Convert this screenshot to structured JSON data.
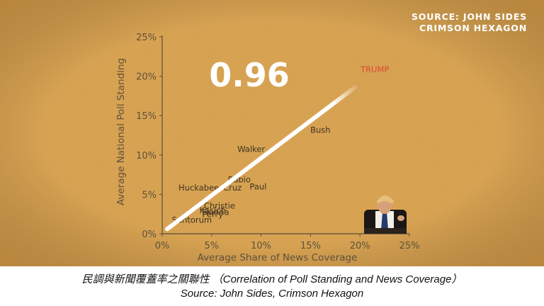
{
  "source_line1": "SOURCE: JOHN SIDES",
  "source_line2": "CRIMSON HEXAGON",
  "correlation_label": "0.96",
  "caption_line1": "民調與新聞覆蓋率之關聯性 （Correlation of Poll Standing and News Coverage）",
  "caption_line2": "Source: John Sides, Crimson Hexagon",
  "colors": {
    "background": "#d9a352",
    "axis": "#6e5a3c",
    "tick_text": "#5f513b",
    "candidate_label": "#3e3322",
    "highlight_label": "#d84a32",
    "trend_line": "#ffffff"
  },
  "chart_data": {
    "type": "scatter",
    "title": "",
    "xlabel": "Average Share of News Coverage",
    "ylabel": "Average National Poll Standing",
    "xlim": [
      0,
      25
    ],
    "ylim": [
      0,
      25
    ],
    "xticks": [
      "0%",
      "5%",
      "10%",
      "15%",
      "20%",
      "25%"
    ],
    "yticks": [
      "0%",
      "5%",
      "10%",
      "15%",
      "20%",
      "25%"
    ],
    "grid": false,
    "points": [
      {
        "label": "TRUMP",
        "x": 21.5,
        "y": 20.5,
        "highlight": true
      },
      {
        "label": "Bush",
        "x": 16.0,
        "y": 12.8
      },
      {
        "label": "Walker",
        "x": 9.0,
        "y": 10.4
      },
      {
        "label": "Rubio",
        "x": 7.8,
        "y": 6.5
      },
      {
        "label": "Huckabee",
        "x": 3.7,
        "y": 5.5
      },
      {
        "label": "Cruz",
        "x": 7.1,
        "y": 5.5
      },
      {
        "label": "Paul",
        "x": 9.7,
        "y": 5.6
      },
      {
        "label": "Christie",
        "x": 5.8,
        "y": 3.2
      },
      {
        "label": "Kasich",
        "x": 5.1,
        "y": 2.6
      },
      {
        "label": "Fiorina",
        "x": 5.4,
        "y": 2.4
      },
      {
        "label": "Perry",
        "x": 5.1,
        "y": 2.1
      },
      {
        "label": "Santorum",
        "x": 3.0,
        "y": 1.4
      }
    ],
    "trend_line": {
      "x": [
        0.5,
        19.5
      ],
      "y": [
        0.6,
        18.6
      ]
    }
  }
}
